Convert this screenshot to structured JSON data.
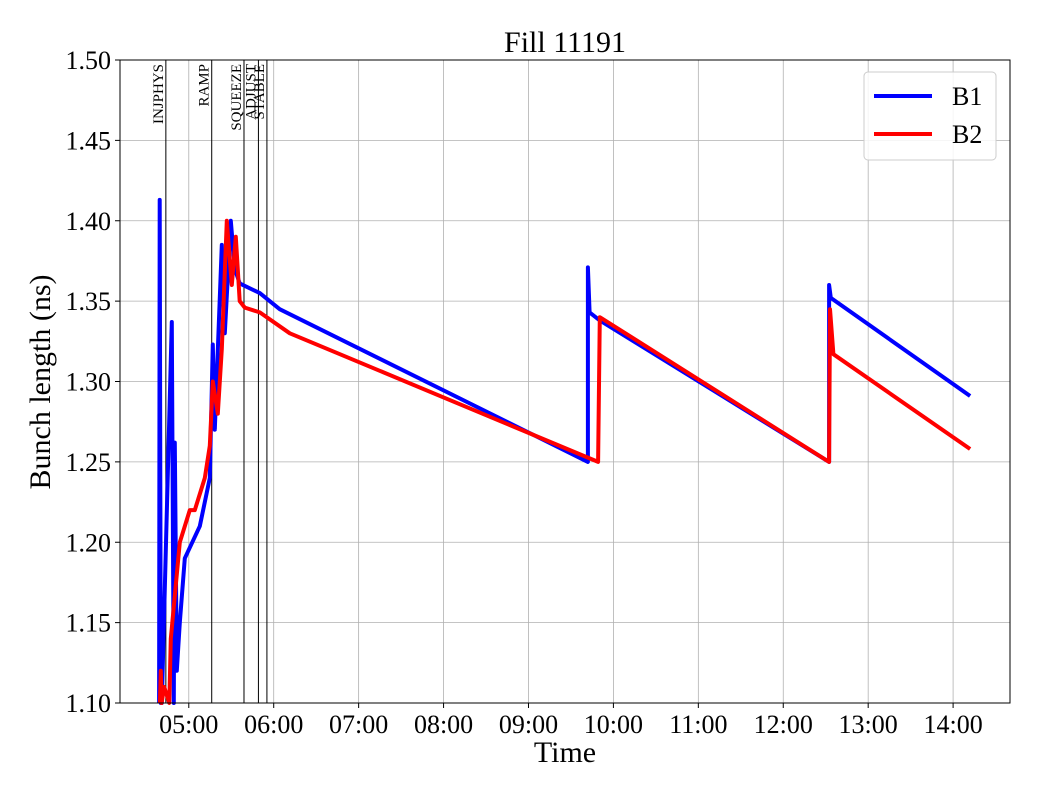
{
  "chart_data": {
    "type": "line",
    "title": "Fill 11191",
    "xlabel": "Time",
    "ylabel": "Bunch length (ns)",
    "xlim": [
      4.19,
      14.67
    ],
    "ylim": [
      1.1,
      1.5
    ],
    "xticks": [
      {
        "value": 5,
        "label": "05:00"
      },
      {
        "value": 6,
        "label": "06:00"
      },
      {
        "value": 7,
        "label": "07:00"
      },
      {
        "value": 8,
        "label": "08:00"
      },
      {
        "value": 9,
        "label": "09:00"
      },
      {
        "value": 10,
        "label": "10:00"
      },
      {
        "value": 11,
        "label": "11:00"
      },
      {
        "value": 12,
        "label": "12:00"
      },
      {
        "value": 13,
        "label": "13:00"
      },
      {
        "value": 14,
        "label": "14:00"
      }
    ],
    "yticks": [
      {
        "value": 1.1,
        "label": "1.10"
      },
      1.15,
      {
        "value": 1.2,
        "label": "1.20"
      },
      1.25,
      {
        "value": 1.3,
        "label": "1.30"
      },
      1.35,
      {
        "value": 1.4,
        "label": "1.40"
      },
      1.45,
      {
        "value": 1.5,
        "label": "1.50"
      }
    ],
    "grid": true,
    "legend": "upper right",
    "phases": [
      {
        "label": "INJPHYS",
        "x": 4.73
      },
      {
        "label": "RAMP",
        "x": 5.27
      },
      {
        "label": "SQUEEZE",
        "x": 5.65
      },
      {
        "label": "ADJUST",
        "x": 5.82
      },
      {
        "label": "STABLE",
        "x": 5.92
      }
    ],
    "series": [
      {
        "name": "B1",
        "color": "#0000ff",
        "x": [
          4.65,
          4.658,
          4.67,
          4.682,
          4.8,
          4.823,
          4.835,
          4.859,
          4.894,
          4.953,
          5.13,
          5.247,
          5.283,
          5.306,
          5.389,
          5.424,
          5.495,
          5.542,
          5.6,
          5.836,
          6.07,
          9.7,
          9.7,
          9.72,
          9.84,
          12.54,
          12.54,
          12.56,
          14.2
        ],
        "values": [
          1.1,
          1.413,
          1.1,
          1.1,
          1.337,
          1.1,
          1.262,
          1.12,
          1.15,
          1.19,
          1.21,
          1.24,
          1.323,
          1.27,
          1.385,
          1.33,
          1.4,
          1.37,
          1.361,
          1.355,
          1.345,
          1.25,
          1.371,
          1.343,
          1.338,
          1.25,
          1.36,
          1.352,
          1.291
        ]
      },
      {
        "name": "B2",
        "color": "#ff0000",
        "x": [
          4.66,
          4.67,
          4.68,
          4.71,
          4.77,
          4.788,
          4.823,
          4.894,
          5.012,
          5.071,
          5.188,
          5.247,
          5.283,
          5.342,
          5.389,
          5.448,
          5.507,
          5.554,
          5.6,
          5.66,
          5.836,
          6.19,
          9.82,
          9.84,
          12.54,
          12.55,
          12.59,
          14.2
        ],
        "values": [
          1.1,
          1.12,
          1.1,
          1.11,
          1.1,
          1.14,
          1.16,
          1.2,
          1.22,
          1.22,
          1.24,
          1.26,
          1.3,
          1.28,
          1.32,
          1.4,
          1.36,
          1.39,
          1.35,
          1.346,
          1.343,
          1.33,
          1.25,
          1.34,
          1.25,
          1.345,
          1.317,
          1.258
        ]
      }
    ]
  }
}
